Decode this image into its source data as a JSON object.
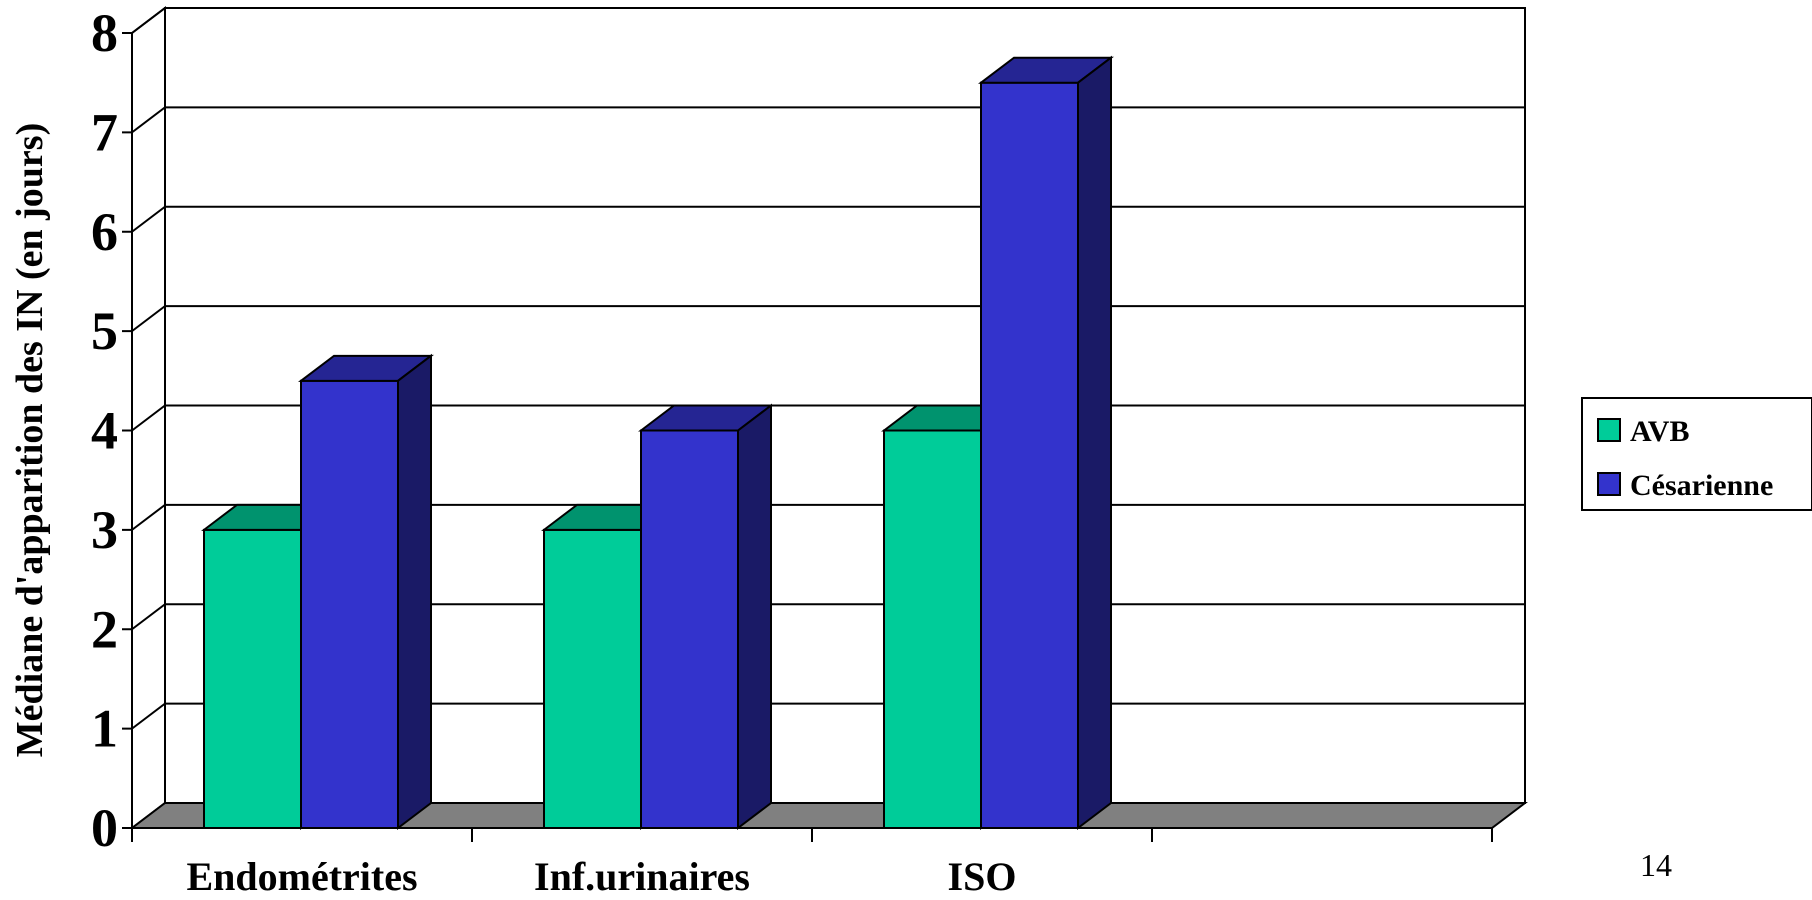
{
  "chart_data": {
    "type": "bar",
    "title": "",
    "ylabel": "Médiane d'apparition des IN (en jours)",
    "xlabel": "",
    "categories": [
      "Endométrites",
      "Inf.urinaires",
      "ISO"
    ],
    "series": [
      {
        "name": "AVB",
        "values": [
          3,
          3,
          4
        ],
        "color": "#00CC99"
      },
      {
        "name": "Césarienne",
        "values": [
          4.5,
          4,
          7.5
        ],
        "color": "#3333CC"
      }
    ],
    "ylim": [
      0,
      8
    ],
    "yticks": [
      0,
      1,
      2,
      3,
      4,
      5,
      6,
      7,
      8
    ],
    "grid": true,
    "three_d": true,
    "legend_position": "right"
  },
  "page_number": "14"
}
